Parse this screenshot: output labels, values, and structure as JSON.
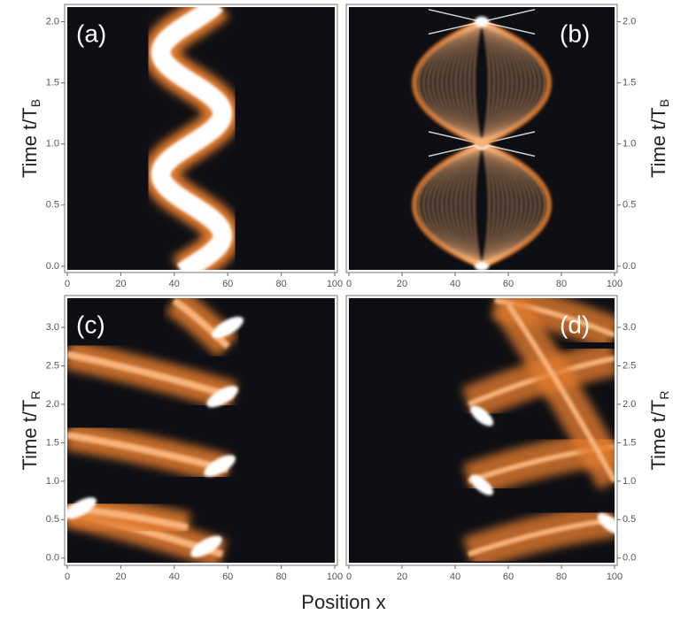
{
  "chart_data": [
    {
      "type": "heatmap",
      "panel_label": "(a)",
      "ylabel": "Time t/T",
      "ylabel_sub": "B",
      "xlim": [
        0,
        100
      ],
      "xticks": [
        0,
        20,
        40,
        60,
        80,
        100
      ],
      "ylim": [
        -0.03,
        2.12
      ],
      "yticks": [
        {
          "value": 0,
          "label": "0.0"
        },
        {
          "value": 0.5,
          "label": "0.5"
        },
        {
          "value": 1,
          "label": "1.0"
        },
        {
          "value": 1.5,
          "label": "1.5"
        },
        {
          "value": 2,
          "label": "2.0"
        }
      ]
    },
    {
      "type": "heatmap",
      "panel_label": "(b)",
      "ylabel": "Time t/T",
      "ylabel_sub": "B",
      "xlim": [
        0,
        100
      ],
      "xticks": [
        0,
        20,
        40,
        60,
        80,
        100
      ],
      "ylim": [
        -0.03,
        2.12
      ],
      "yticks": [
        {
          "value": 0,
          "label": "0.0"
        },
        {
          "value": 0.5,
          "label": "0.5"
        },
        {
          "value": 1,
          "label": "1.0"
        },
        {
          "value": 1.5,
          "label": "1.5"
        },
        {
          "value": 2,
          "label": "2.0"
        }
      ]
    },
    {
      "type": "heatmap",
      "panel_label": "(c)",
      "ylabel": "Time t/T",
      "ylabel_sub": "R",
      "xlim": [
        0,
        100
      ],
      "xticks": [
        0,
        20,
        40,
        60,
        80,
        100
      ],
      "ylim": [
        -0.06,
        3.38
      ],
      "yticks": [
        {
          "value": 0,
          "label": "0.0"
        },
        {
          "value": 0.5,
          "label": "0.5"
        },
        {
          "value": 1,
          "label": "1.0"
        },
        {
          "value": 1.5,
          "label": "1.5"
        },
        {
          "value": 2,
          "label": "2.0"
        },
        {
          "value": 2.5,
          "label": "2.5"
        },
        {
          "value": 3,
          "label": "3.0"
        }
      ]
    },
    {
      "type": "heatmap",
      "panel_label": "(d)",
      "ylabel": "Time t/T",
      "ylabel_sub": "R",
      "xlim": [
        0,
        100
      ],
      "xticks": [
        0,
        20,
        40,
        60,
        80,
        100
      ],
      "ylim": [
        -0.06,
        3.38
      ],
      "yticks": [
        {
          "value": 0,
          "label": "0.0"
        },
        {
          "value": 0.5,
          "label": "0.5"
        },
        {
          "value": 1,
          "label": "1.0"
        },
        {
          "value": 1.5,
          "label": "1.5"
        },
        {
          "value": 2,
          "label": "2.0"
        },
        {
          "value": 2.5,
          "label": "2.5"
        },
        {
          "value": 3,
          "label": "3.0"
        }
      ]
    }
  ],
  "figure": {
    "xlabel": "Position x"
  }
}
